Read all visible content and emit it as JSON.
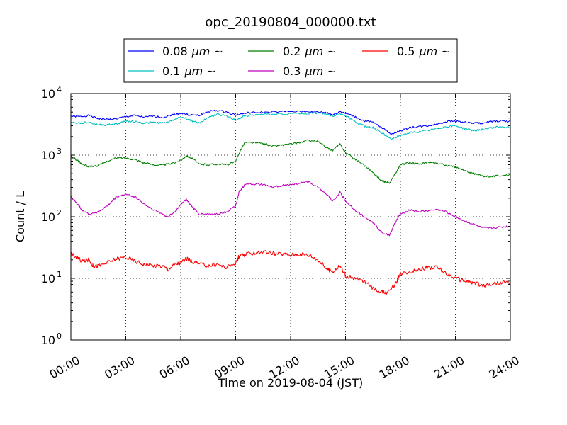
{
  "chart_data": {
    "type": "line",
    "title": "opc_20190804_000000.txt",
    "xlabel": "Time on 2019-08-04 (JST)",
    "ylabel": "Count / L",
    "xlim": [
      0,
      24
    ],
    "ylim": [
      1,
      10000
    ],
    "yscale": "log",
    "grid": true,
    "legend_placement": "top-center",
    "x_ticks": [
      0,
      3,
      6,
      9,
      12,
      15,
      18,
      21,
      24
    ],
    "x_tick_labels": [
      "00:00",
      "03:00",
      "06:00",
      "09:00",
      "12:00",
      "15:00",
      "18:00",
      "21:00",
      "24:00"
    ],
    "y_ticks": [
      1,
      10,
      100,
      1000,
      10000
    ],
    "y_tick_labels": [
      {
        "base": "10",
        "exp": "0"
      },
      {
        "base": "10",
        "exp": "1"
      },
      {
        "base": "10",
        "exp": "2"
      },
      {
        "base": "10",
        "exp": "3"
      },
      {
        "base": "10",
        "exp": "4"
      }
    ],
    "legend_suffix": "μm ~",
    "series": [
      {
        "name": "0.08",
        "color": "#0000ff",
        "points": [
          [
            0,
            4300
          ],
          [
            0.5,
            4200
          ],
          [
            1,
            4400
          ],
          [
            1.5,
            3900
          ],
          [
            2,
            3800
          ],
          [
            2.5,
            3900
          ],
          [
            3,
            4200
          ],
          [
            3.5,
            4400
          ],
          [
            4,
            4100
          ],
          [
            4.5,
            4300
          ],
          [
            5,
            4100
          ],
          [
            5.5,
            4500
          ],
          [
            6,
            4800
          ],
          [
            6.5,
            4500
          ],
          [
            7,
            4400
          ],
          [
            7.5,
            5100
          ],
          [
            8,
            5300
          ],
          [
            8.5,
            5000
          ],
          [
            9,
            4500
          ],
          [
            9.5,
            4800
          ],
          [
            10,
            4900
          ],
          [
            11,
            5000
          ],
          [
            12,
            5100
          ],
          [
            13,
            5100
          ],
          [
            13.5,
            5000
          ],
          [
            14,
            4900
          ],
          [
            14.3,
            4500
          ],
          [
            14.7,
            5100
          ],
          [
            15,
            4800
          ],
          [
            15.5,
            4200
          ],
          [
            16,
            3600
          ],
          [
            16.5,
            3400
          ],
          [
            17,
            2800
          ],
          [
            17.5,
            2200
          ],
          [
            18,
            2500
          ],
          [
            18.5,
            2800
          ],
          [
            19,
            2900
          ],
          [
            19.5,
            3000
          ],
          [
            20,
            3200
          ],
          [
            20.5,
            3500
          ],
          [
            21,
            3600
          ],
          [
            21.5,
            3400
          ],
          [
            22,
            3300
          ],
          [
            22.5,
            3300
          ],
          [
            23,
            3500
          ],
          [
            23.5,
            3600
          ],
          [
            24,
            3500
          ]
        ]
      },
      {
        "name": "0.1",
        "color": "#00bfbf",
        "points": [
          [
            0,
            3400
          ],
          [
            0.5,
            3300
          ],
          [
            1,
            3400
          ],
          [
            1.5,
            3100
          ],
          [
            2,
            3100
          ],
          [
            2.5,
            3200
          ],
          [
            3,
            3600
          ],
          [
            3.5,
            3500
          ],
          [
            4,
            3300
          ],
          [
            4.5,
            3400
          ],
          [
            5,
            3300
          ],
          [
            5.5,
            3600
          ],
          [
            6,
            4200
          ],
          [
            6.5,
            3700
          ],
          [
            7,
            3300
          ],
          [
            7.5,
            4100
          ],
          [
            8,
            4600
          ],
          [
            8.5,
            4300
          ],
          [
            9,
            3700
          ],
          [
            9.5,
            4300
          ],
          [
            10,
            4500
          ],
          [
            11,
            4600
          ],
          [
            12,
            4700
          ],
          [
            13,
            4800
          ],
          [
            13.5,
            4800
          ],
          [
            14,
            4600
          ],
          [
            14.3,
            4300
          ],
          [
            14.7,
            4700
          ],
          [
            15,
            4400
          ],
          [
            15.5,
            3500
          ],
          [
            16,
            3000
          ],
          [
            16.5,
            2800
          ],
          [
            17,
            2300
          ],
          [
            17.5,
            1800
          ],
          [
            18,
            2100
          ],
          [
            18.5,
            2300
          ],
          [
            19,
            2400
          ],
          [
            19.5,
            2500
          ],
          [
            20,
            2700
          ],
          [
            20.5,
            2900
          ],
          [
            21,
            3000
          ],
          [
            21.5,
            2700
          ],
          [
            22,
            2500
          ],
          [
            22.5,
            2600
          ],
          [
            23,
            2800
          ],
          [
            23.5,
            2900
          ],
          [
            24,
            2800
          ]
        ]
      },
      {
        "name": "0.2",
        "color": "#008000",
        "points": [
          [
            0,
            950
          ],
          [
            0.3,
            850
          ],
          [
            0.6,
            720
          ],
          [
            1,
            650
          ],
          [
            1.5,
            680
          ],
          [
            2,
            800
          ],
          [
            2.5,
            900
          ],
          [
            3,
            900
          ],
          [
            3.5,
            850
          ],
          [
            4,
            750
          ],
          [
            4.5,
            700
          ],
          [
            5,
            690
          ],
          [
            5.5,
            730
          ],
          [
            6,
            820
          ],
          [
            6.3,
            980
          ],
          [
            6.6,
            900
          ],
          [
            7,
            720
          ],
          [
            7.5,
            700
          ],
          [
            8,
            720
          ],
          [
            8.5,
            700
          ],
          [
            9,
            780
          ],
          [
            9.2,
            1100
          ],
          [
            9.5,
            1600
          ],
          [
            10,
            1600
          ],
          [
            10.5,
            1550
          ],
          [
            11,
            1400
          ],
          [
            11.5,
            1450
          ],
          [
            12,
            1500
          ],
          [
            12.5,
            1600
          ],
          [
            13,
            1750
          ],
          [
            13.5,
            1650
          ],
          [
            14,
            1300
          ],
          [
            14.3,
            1200
          ],
          [
            14.7,
            1500
          ],
          [
            15,
            1100
          ],
          [
            15.5,
            870
          ],
          [
            16,
            700
          ],
          [
            16.5,
            520
          ],
          [
            17,
            380
          ],
          [
            17.4,
            350
          ],
          [
            17.8,
            550
          ],
          [
            18,
            700
          ],
          [
            18.5,
            750
          ],
          [
            19,
            720
          ],
          [
            19.5,
            760
          ],
          [
            20,
            740
          ],
          [
            20.5,
            680
          ],
          [
            21,
            640
          ],
          [
            21.5,
            560
          ],
          [
            22,
            500
          ],
          [
            22.5,
            460
          ],
          [
            23,
            450
          ],
          [
            23.5,
            470
          ],
          [
            24,
            470
          ]
        ]
      },
      {
        "name": "0.3",
        "color": "#bf00bf",
        "points": [
          [
            0,
            210
          ],
          [
            0.3,
            170
          ],
          [
            0.6,
            130
          ],
          [
            1,
            110
          ],
          [
            1.5,
            120
          ],
          [
            2,
            150
          ],
          [
            2.5,
            210
          ],
          [
            3,
            230
          ],
          [
            3.5,
            210
          ],
          [
            4,
            160
          ],
          [
            4.5,
            130
          ],
          [
            5,
            110
          ],
          [
            5.3,
            100
          ],
          [
            5.7,
            120
          ],
          [
            6,
            160
          ],
          [
            6.3,
            190
          ],
          [
            6.6,
            150
          ],
          [
            7,
            110
          ],
          [
            7.5,
            110
          ],
          [
            8,
            110
          ],
          [
            8.5,
            120
          ],
          [
            9,
            150
          ],
          [
            9.2,
            260
          ],
          [
            9.5,
            330
          ],
          [
            10,
            340
          ],
          [
            10.5,
            330
          ],
          [
            11,
            300
          ],
          [
            11.5,
            320
          ],
          [
            12,
            330
          ],
          [
            12.5,
            350
          ],
          [
            13,
            370
          ],
          [
            13.5,
            300
          ],
          [
            14,
            230
          ],
          [
            14.3,
            180
          ],
          [
            14.7,
            250
          ],
          [
            15,
            180
          ],
          [
            15.5,
            130
          ],
          [
            16,
            100
          ],
          [
            16.5,
            80
          ],
          [
            17,
            55
          ],
          [
            17.4,
            50
          ],
          [
            17.8,
            90
          ],
          [
            18,
            110
          ],
          [
            18.5,
            130
          ],
          [
            19,
            120
          ],
          [
            19.5,
            125
          ],
          [
            20,
            130
          ],
          [
            20.5,
            120
          ],
          [
            21,
            100
          ],
          [
            21.5,
            85
          ],
          [
            22,
            75
          ],
          [
            22.5,
            65
          ],
          [
            23,
            65
          ],
          [
            23.5,
            68
          ],
          [
            24,
            70
          ]
        ]
      },
      {
        "name": "0.5",
        "color": "#ff0000",
        "points": [
          [
            0,
            25
          ],
          [
            0.3,
            22
          ],
          [
            0.6,
            19
          ],
          [
            1,
            20
          ],
          [
            1.2,
            16
          ],
          [
            1.5,
            16
          ],
          [
            2,
            18
          ],
          [
            2.5,
            21
          ],
          [
            3,
            22
          ],
          [
            3.5,
            19
          ],
          [
            4,
            17
          ],
          [
            4.5,
            16
          ],
          [
            5,
            16
          ],
          [
            5.3,
            14
          ],
          [
            5.7,
            17
          ],
          [
            6,
            18
          ],
          [
            6.3,
            21
          ],
          [
            6.6,
            19
          ],
          [
            7,
            17
          ],
          [
            7.5,
            16
          ],
          [
            8,
            17
          ],
          [
            8.5,
            15
          ],
          [
            9,
            18
          ],
          [
            9.2,
            23
          ],
          [
            9.5,
            24
          ],
          [
            10,
            26
          ],
          [
            10.5,
            27
          ],
          [
            11,
            25
          ],
          [
            11.5,
            25
          ],
          [
            12,
            24
          ],
          [
            12.5,
            25
          ],
          [
            13,
            24
          ],
          [
            13.5,
            20
          ],
          [
            14,
            14
          ],
          [
            14.3,
            13
          ],
          [
            14.7,
            16
          ],
          [
            15,
            11
          ],
          [
            15.5,
            10
          ],
          [
            16,
            9
          ],
          [
            16.5,
            7
          ],
          [
            17,
            6
          ],
          [
            17.4,
            6
          ],
          [
            17.8,
            9
          ],
          [
            18,
            12
          ],
          [
            18.5,
            13
          ],
          [
            19,
            14
          ],
          [
            19.5,
            15
          ],
          [
            20,
            15
          ],
          [
            20.5,
            12
          ],
          [
            21,
            10
          ],
          [
            21.5,
            9
          ],
          [
            22,
            8.5
          ],
          [
            22.5,
            7.5
          ],
          [
            23,
            8
          ],
          [
            23.5,
            8.5
          ],
          [
            24,
            8.5
          ]
        ]
      }
    ]
  }
}
